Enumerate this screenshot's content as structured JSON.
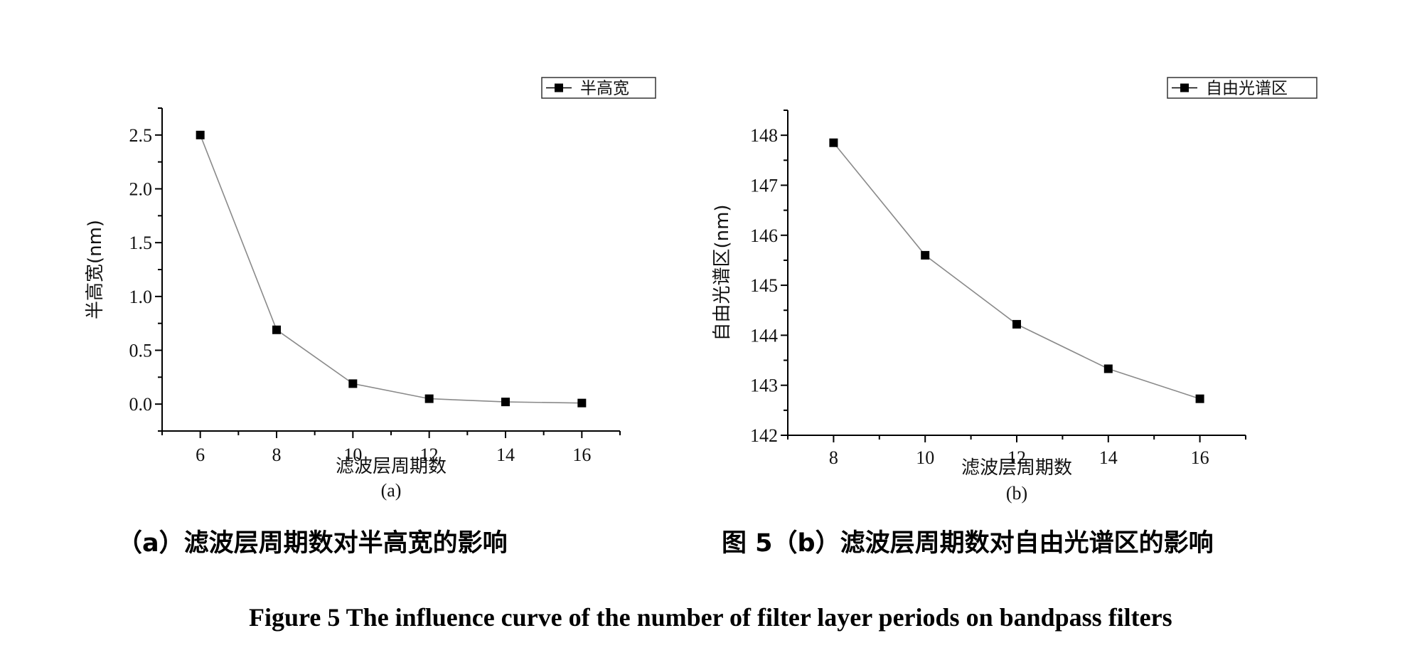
{
  "chart_data": [
    {
      "type": "line",
      "title": "",
      "legend": "半高宽",
      "legend_position": "top-right",
      "xlabel": "滤波层周期数",
      "ylabel": "半高宽(nm)",
      "sublabel": "(a)",
      "x": [
        6,
        8,
        10,
        12,
        14,
        16
      ],
      "y": [
        2.5,
        0.69,
        0.19,
        0.05,
        0.02,
        0.01
      ],
      "xlim": [
        5,
        17
      ],
      "ylim": [
        -0.25,
        2.75
      ],
      "xticks": [
        6,
        8,
        10,
        12,
        14,
        16
      ],
      "xtick_labels": [
        "6",
        "8",
        "10",
        "12",
        "14",
        "16"
      ],
      "yticks": [
        0,
        0.5,
        1,
        1.5,
        2,
        2.5
      ],
      "ytick_labels": [
        "0.0",
        "0.5",
        "1.0",
        "1.5",
        "2.0",
        "2.5"
      ],
      "grid": false
    },
    {
      "type": "line",
      "title": "",
      "legend": "自由光谱区",
      "legend_position": "top-right",
      "xlabel": "滤波层周期数",
      "ylabel": "自由光谱区(nm)",
      "sublabel": "(b)",
      "x": [
        8,
        10,
        12,
        14,
        16
      ],
      "y": [
        147.85,
        145.6,
        144.22,
        143.33,
        142.73
      ],
      "xlim": [
        7,
        17
      ],
      "ylim": [
        142,
        148.5
      ],
      "xticks": [
        8,
        10,
        12,
        14,
        16
      ],
      "xtick_labels": [
        "8",
        "10",
        "12",
        "14",
        "16"
      ],
      "yticks": [
        142,
        143,
        144,
        145,
        146,
        147,
        148
      ],
      "ytick_labels": [
        "142",
        "143",
        "144",
        "145",
        "146",
        "147",
        "148"
      ],
      "grid": false
    }
  ],
  "captions": {
    "left_cn": "（a）滤波层周期数对半高宽的影响",
    "right_cn": "图 5（b）滤波层周期数对自由光谱区的影响",
    "english": "Figure 5 The influence curve of the number of filter layer periods on bandpass filters"
  }
}
